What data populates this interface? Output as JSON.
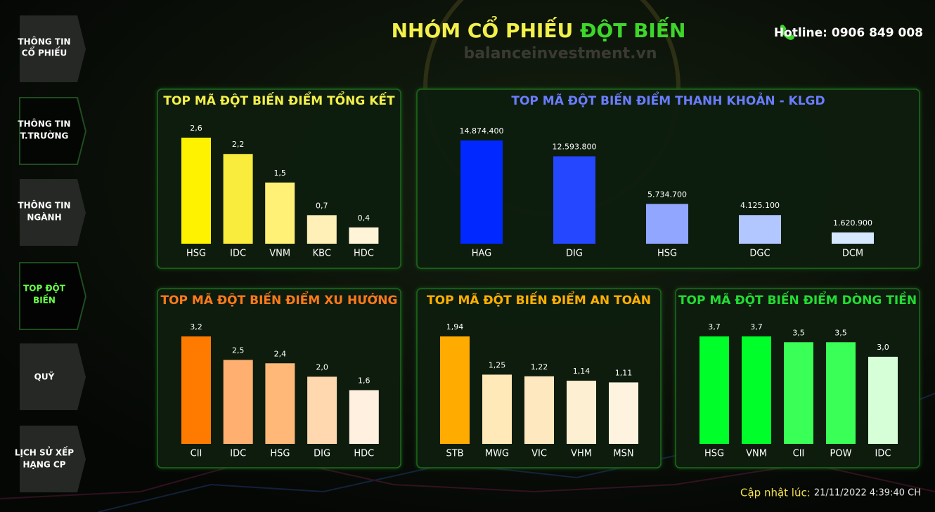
{
  "header": {
    "title_part1": "NHÓM CỔ PHIẾU",
    "title_part2": "ĐỘT BIẾN",
    "hotline": "Hotline: 0906 849 008",
    "watermark": "balanceinvestment.vn"
  },
  "nav": [
    {
      "lines": [
        "THÔNG TIN",
        "CỔ PHIẾU"
      ]
    },
    {
      "lines": [
        "THÔNG TIN",
        "T.TRƯỜNG"
      ]
    },
    {
      "lines": [
        "THÔNG TIN",
        "NGÀNH"
      ]
    },
    {
      "lines": [
        "TOP ĐỘT",
        "BIẾN"
      ]
    },
    {
      "lines": [
        "QUỸ"
      ]
    },
    {
      "lines": [
        "LỊCH SỬ XẾP",
        "HẠNG CP"
      ]
    }
  ],
  "chart_data": [
    {
      "type": "bar",
      "title": "TOP MÃ ĐỘT BIẾN ĐIỂM TỔNG KẾT",
      "title_color": "#f3f04a",
      "categories": [
        "HSG",
        "IDC",
        "VNM",
        "KBC",
        "HDC"
      ],
      "values": [
        2.6,
        2.2,
        1.5,
        0.7,
        0.4
      ],
      "value_labels": [
        "2,6",
        "2,2",
        "1,5",
        "0,7",
        "0,4"
      ],
      "colors": [
        "#fff200",
        "#f9ec3c",
        "#fff176",
        "#fff0b8",
        "#fff4d8"
      ]
    },
    {
      "type": "bar",
      "title": "TOP MÃ ĐỘT BIẾN ĐIỂM THANH KHOẢN - KLGD",
      "title_color": "#6a7dff",
      "categories": [
        "HAG",
        "DIG",
        "HSG",
        "DGC",
        "DCM"
      ],
      "values": [
        14874400,
        12593800,
        5734700,
        4125100,
        1620900
      ],
      "value_labels": [
        "14.874.400",
        "12.593.800",
        "5.734.700",
        "4.125.100",
        "1.620.900"
      ],
      "colors": [
        "#0028ff",
        "#2447ff",
        "#90a6ff",
        "#b2c6ff",
        "#d6e8ff"
      ]
    },
    {
      "type": "bar",
      "title": "TOP MÃ ĐỘT BIẾN ĐIỂM XU HƯỚNG",
      "title_color": "#ff7a1a",
      "categories": [
        "CII",
        "IDC",
        "HSG",
        "DIG",
        "HDC"
      ],
      "values": [
        3.2,
        2.5,
        2.4,
        2.0,
        1.6
      ],
      "value_labels": [
        "3,2",
        "2,5",
        "2,4",
        "2,0",
        "1,6"
      ],
      "colors": [
        "#ff7b00",
        "#ffb070",
        "#ffb878",
        "#ffd8b0",
        "#fff0e0"
      ]
    },
    {
      "type": "bar",
      "title": "TOP MÃ ĐỘT BIẾN ĐIỂM AN TOÀN",
      "title_color": "#ffb000",
      "categories": [
        "STB",
        "MWG",
        "VIC",
        "VHM",
        "MSN"
      ],
      "values": [
        1.94,
        1.25,
        1.22,
        1.14,
        1.11
      ],
      "value_labels": [
        "1,94",
        "1,25",
        "1,22",
        "1,14",
        "1,11"
      ],
      "colors": [
        "#ffab00",
        "#ffe9b8",
        "#fde8c0",
        "#fdf0d2",
        "#fdf3de"
      ]
    },
    {
      "type": "bar",
      "title": "TOP MÃ ĐỘT BIẾN ĐIỂM DÒNG TIỀN",
      "title_color": "#22dd33",
      "categories": [
        "HSG",
        "VNM",
        "CII",
        "POW",
        "IDC"
      ],
      "values": [
        3.7,
        3.7,
        3.5,
        3.5,
        3.0
      ],
      "value_labels": [
        "3,7",
        "3,7",
        "3,5",
        "3,5",
        "3,0"
      ],
      "colors": [
        "#00ff2a",
        "#00ff2a",
        "#3aff56",
        "#3aff56",
        "#d6ffd8"
      ]
    }
  ],
  "footer": {
    "label": "Cập nhật lúc:",
    "timestamp": "21/11/2022 4:39:40 CH"
  }
}
